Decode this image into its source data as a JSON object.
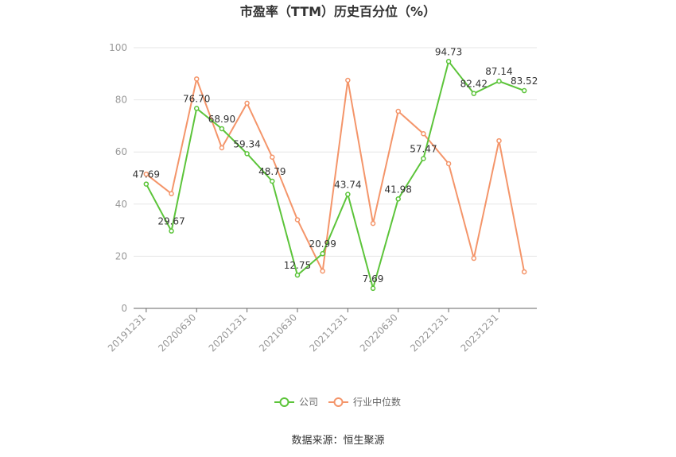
{
  "chart_data": {
    "type": "line",
    "title": "市盈率（TTM）历史百分位（%）",
    "categories": [
      "20191231",
      null,
      "20200630",
      null,
      "20201231",
      null,
      "20210630",
      null,
      "20211231",
      null,
      "20220630",
      null,
      "20221231",
      null,
      "20231231",
      null
    ],
    "series": [
      {
        "name": "公司",
        "color": "#5cc43a",
        "values": [
          47.69,
          29.67,
          76.7,
          68.9,
          59.34,
          48.79,
          12.75,
          20.99,
          43.74,
          7.69,
          41.98,
          57.47,
          94.73,
          82.42,
          87.14,
          83.52
        ],
        "value_labels": [
          "47.69",
          "29.67",
          "76.70",
          "68.90",
          "59.34",
          "48.79",
          "12.75",
          "20.99",
          "43.74",
          "7.69",
          "41.98",
          "57.47",
          "94.73",
          "82.42",
          "87.14",
          "83.52"
        ]
      },
      {
        "name": "行业中位数",
        "color": "#f4956a",
        "values": [
          51.5,
          44,
          88,
          61.6,
          78.7,
          58,
          34,
          14.3,
          87.5,
          32.6,
          75.6,
          67,
          55.5,
          19.2,
          64.3,
          14
        ]
      }
    ],
    "ylim": [
      0,
      100
    ],
    "yticks": [
      0,
      20,
      40,
      60,
      80,
      100
    ],
    "grid": true,
    "source": "数据来源：恒生聚源"
  }
}
